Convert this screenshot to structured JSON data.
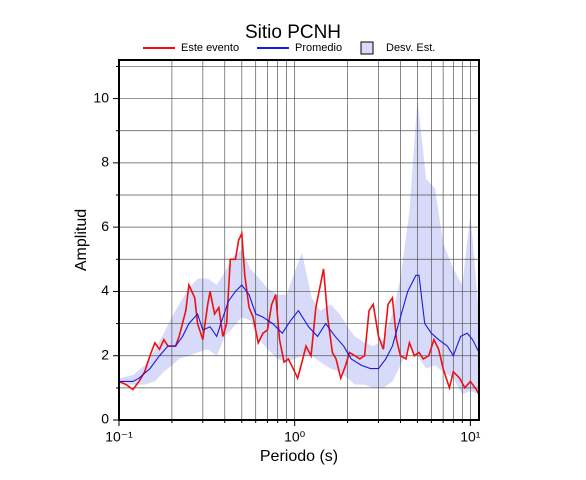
{
  "chart_data": {
    "type": "line",
    "title": "Sitio PCNH",
    "xlabel": "Periodo (s)",
    "ylabel": "Amplitud",
    "xscale": "log",
    "grid": true,
    "xlim": [
      0.1,
      11.2
    ],
    "xticks": [
      {
        "value": 0.1,
        "label": "10⁻¹"
      },
      {
        "value": 1,
        "label": "10⁰"
      },
      {
        "value": 10,
        "label": "10¹"
      }
    ],
    "xminor": [
      0.2,
      0.3,
      0.4,
      0.5,
      0.6,
      0.7,
      0.8,
      0.9,
      2,
      3,
      4,
      5,
      6,
      7,
      8,
      9
    ],
    "ylim": [
      0,
      11.2
    ],
    "yticks": [
      0,
      2,
      4,
      6,
      8,
      10
    ],
    "yminor": [
      1,
      3,
      5,
      7,
      9,
      11
    ],
    "series": [
      {
        "name": "Este evento",
        "color": "#ee1111",
        "x": [
          0.1,
          0.11,
          0.12,
          0.13,
          0.14,
          0.15,
          0.16,
          0.17,
          0.18,
          0.19,
          0.21,
          0.22,
          0.24,
          0.25,
          0.27,
          0.28,
          0.3,
          0.32,
          0.33,
          0.35,
          0.37,
          0.39,
          0.41,
          0.43,
          0.46,
          0.48,
          0.5,
          0.52,
          0.55,
          0.58,
          0.62,
          0.66,
          0.7,
          0.74,
          0.78,
          0.82,
          0.87,
          0.92,
          0.98,
          1.04,
          1.1,
          1.16,
          1.24,
          1.32,
          1.4,
          1.46,
          1.54,
          1.64,
          1.72,
          1.83,
          1.95,
          2.05,
          2.2,
          2.35,
          2.5,
          2.65,
          2.8,
          3.0,
          3.2,
          3.4,
          3.6,
          3.8,
          4.0,
          4.3,
          4.5,
          4.8,
          5.1,
          5.4,
          5.8,
          6.2,
          6.6,
          7.0,
          7.6,
          8.0,
          8.7,
          9.3,
          10.0,
          10.8,
          11.2
        ],
        "values": [
          1.2,
          1.1,
          0.95,
          1.2,
          1.5,
          2.0,
          2.4,
          2.2,
          2.5,
          2.3,
          2.3,
          2.6,
          3.4,
          4.2,
          3.8,
          3.0,
          2.5,
          3.6,
          4.0,
          3.3,
          3.5,
          2.6,
          3.0,
          5.0,
          5.0,
          5.6,
          5.8,
          4.5,
          3.5,
          3.2,
          2.4,
          2.7,
          2.8,
          3.6,
          3.9,
          2.5,
          1.8,
          1.9,
          1.6,
          1.3,
          1.8,
          2.3,
          2.0,
          3.5,
          4.2,
          4.7,
          3.2,
          2.1,
          1.9,
          1.3,
          1.7,
          2.1,
          2.0,
          1.9,
          2.0,
          3.4,
          3.6,
          2.6,
          2.2,
          3.6,
          3.8,
          2.5,
          2.0,
          1.9,
          2.4,
          2.0,
          2.1,
          1.9,
          2.0,
          2.5,
          2.2,
          1.6,
          1.0,
          1.5,
          1.3,
          1.0,
          1.2,
          0.95,
          0.8
        ]
      },
      {
        "name": "Promedio",
        "color": "#1a1ae0",
        "x": [
          0.1,
          0.12,
          0.13,
          0.15,
          0.17,
          0.19,
          0.21,
          0.23,
          0.25,
          0.28,
          0.3,
          0.33,
          0.36,
          0.38,
          0.42,
          0.46,
          0.5,
          0.55,
          0.6,
          0.66,
          0.75,
          0.85,
          0.95,
          1.05,
          1.2,
          1.35,
          1.5,
          1.7,
          1.9,
          2.1,
          2.4,
          2.7,
          3.0,
          3.3,
          3.6,
          4.0,
          4.4,
          4.9,
          5.1,
          5.5,
          6.0,
          6.6,
          7.4,
          8.0,
          8.8,
          9.6,
          10.3,
          11.2
        ],
        "values": [
          1.2,
          1.2,
          1.3,
          1.6,
          2.0,
          2.3,
          2.3,
          2.6,
          3.0,
          3.3,
          2.8,
          2.9,
          2.6,
          3.0,
          3.7,
          4.0,
          4.2,
          3.9,
          3.3,
          3.2,
          3.0,
          2.7,
          3.1,
          3.4,
          2.9,
          2.6,
          3.0,
          2.6,
          2.3,
          1.9,
          1.7,
          1.6,
          1.6,
          1.9,
          2.3,
          3.2,
          4.0,
          4.5,
          4.5,
          3.0,
          2.7,
          2.5,
          2.3,
          2.0,
          2.6,
          2.7,
          2.5,
          2.1
        ]
      }
    ],
    "band": {
      "name": "Desv. Est.",
      "color": "#d8dafa",
      "x": [
        0.1,
        0.12,
        0.14,
        0.16,
        0.18,
        0.2,
        0.22,
        0.25,
        0.28,
        0.32,
        0.36,
        0.4,
        0.45,
        0.5,
        0.56,
        0.63,
        0.7,
        0.8,
        0.9,
        1.0,
        1.1,
        1.25,
        1.4,
        1.6,
        1.8,
        2.0,
        2.2,
        2.5,
        2.8,
        3.2,
        3.6,
        4.0,
        4.5,
        5.0,
        5.6,
        6.3,
        7.0,
        8.0,
        9.0,
        10.0,
        11.2
      ],
      "upper": [
        1.3,
        1.4,
        1.7,
        2.2,
        2.7,
        3.2,
        3.6,
        4.1,
        4.4,
        4.4,
        4.2,
        4.6,
        5.1,
        5.3,
        4.7,
        4.4,
        4.1,
        3.9,
        3.9,
        4.6,
        5.2,
        3.8,
        3.4,
        3.6,
        3.3,
        2.9,
        2.6,
        2.4,
        2.3,
        2.5,
        3.3,
        4.4,
        6.5,
        10.0,
        7.5,
        7.2,
        5.5,
        4.7,
        4.2,
        6.4,
        3.3
      ],
      "lower": [
        1.1,
        1.1,
        1.1,
        1.2,
        1.5,
        1.7,
        1.9,
        2.0,
        2.1,
        2.2,
        2.0,
        2.6,
        2.9,
        3.2,
        3.1,
        2.5,
        2.2,
        1.9,
        1.8,
        1.9,
        2.0,
        2.0,
        1.8,
        1.6,
        1.5,
        1.3,
        1.1,
        1.1,
        1.0,
        1.0,
        1.2,
        1.7,
        2.3,
        2.0,
        1.6,
        1.7,
        1.5,
        1.3,
        0.8,
        0.9,
        0.8
      ]
    }
  }
}
